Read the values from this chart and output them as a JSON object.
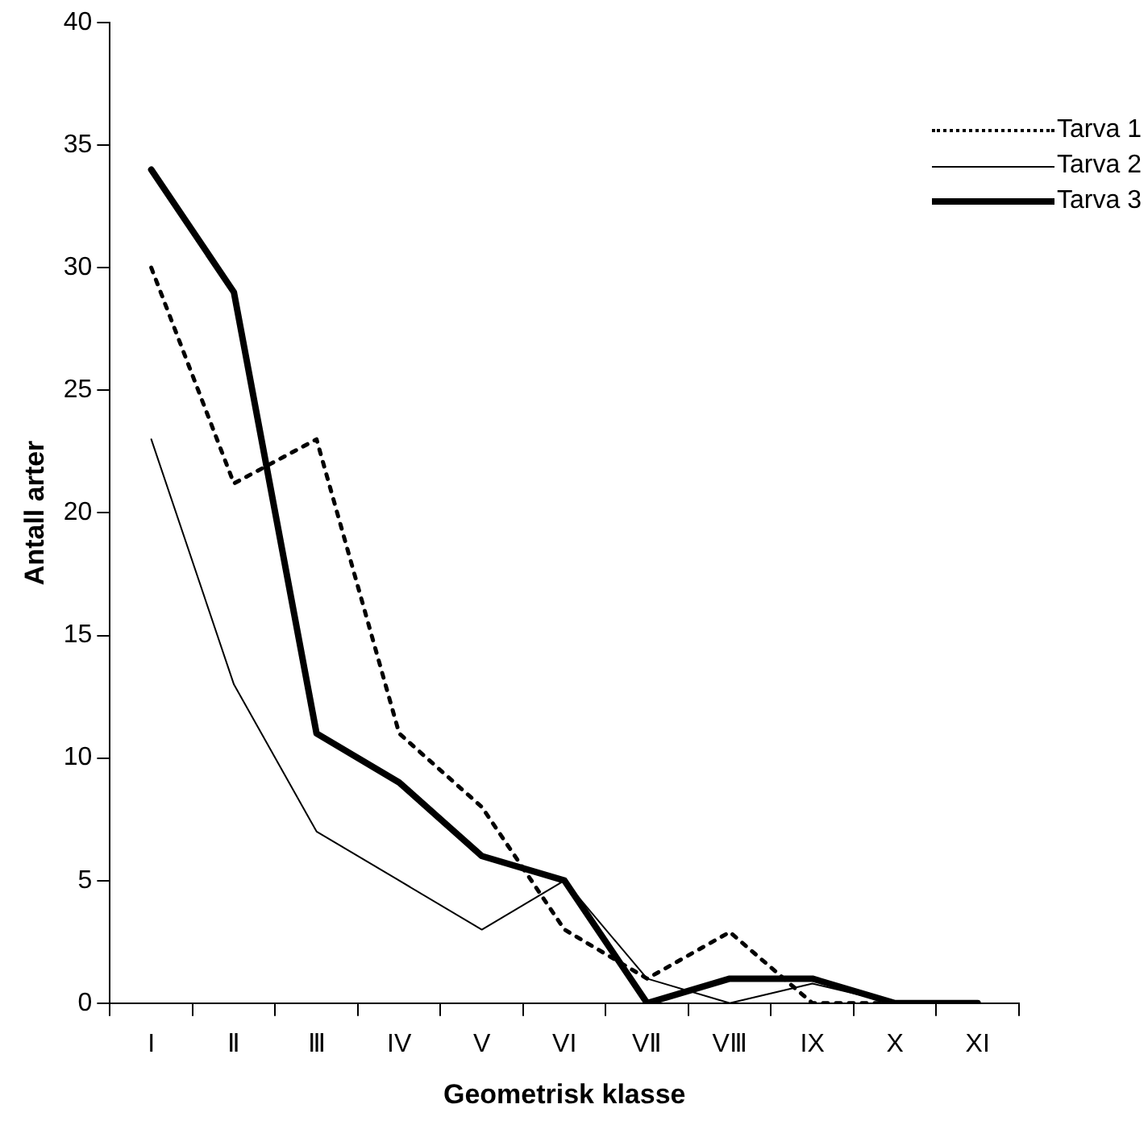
{
  "chart_data": {
    "type": "line",
    "xlabel": "Geometrisk klasse",
    "ylabel": "Antall arter",
    "categories": [
      "I",
      "Ⅱ",
      "Ⅲ",
      "IV",
      "V",
      "VI",
      "VⅡ",
      "VⅢ",
      "IX",
      "X",
      "XI"
    ],
    "series": [
      {
        "name": "Tarva 1",
        "color": "#000000",
        "line_style": "dotted",
        "values": [
          30,
          21.2,
          23,
          11,
          8,
          3,
          1,
          2.9,
          0,
          0,
          0
        ]
      },
      {
        "name": "Tarva 2",
        "color": "#000000",
        "line_style": "solid",
        "values": [
          23,
          13,
          7,
          5,
          3,
          5,
          1,
          0,
          0.8,
          0,
          0
        ]
      },
      {
        "name": "Tarva 3",
        "color": "#000000",
        "line_style": "solid",
        "values": [
          34,
          29,
          11,
          9,
          6,
          5,
          0,
          1,
          1,
          0,
          0
        ]
      }
    ],
    "ylim": [
      0,
      40
    ],
    "yticks": [
      0,
      5,
      10,
      15,
      20,
      25,
      30,
      35,
      40
    ],
    "grid": false,
    "legend": "top right",
    "marker": "none"
  }
}
